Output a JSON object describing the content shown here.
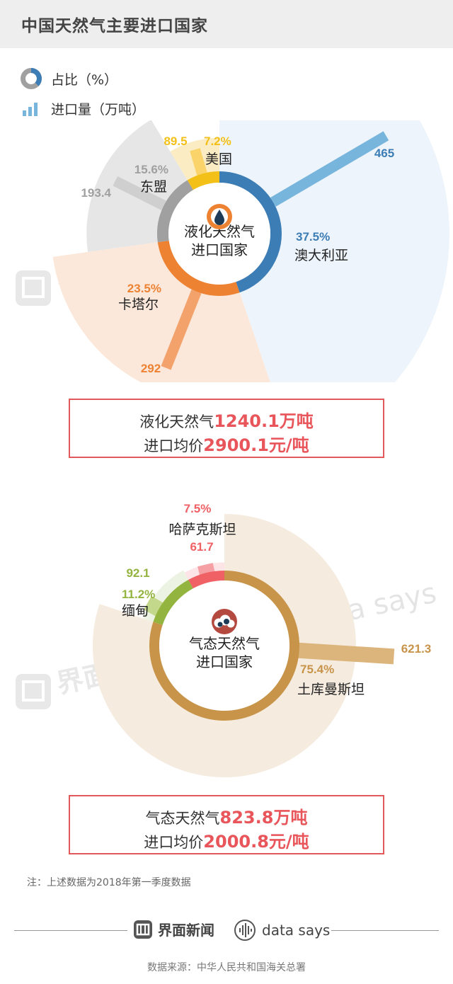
{
  "page": {
    "title": "中国天然气主要进口国家"
  },
  "legend": {
    "share_label": "占比（%）",
    "volume_label": "进口量（万吨）"
  },
  "watermarks": {
    "brand": "界面新",
    "brand2": "界面新",
    "ds": "data says",
    "ds2": "data says"
  },
  "chart_data": [
    {
      "type": "pie",
      "center_label": [
        "液化天然气",
        "进口国家"
      ],
      "value_unit": "万吨",
      "colors": [
        "#3d7db5",
        "#ed8233",
        "#a0a0a0",
        "#f3c018"
      ],
      "light_colors": [
        "#eef4fb",
        "#fbe8da",
        "#e6e6e6",
        "#fbecc4"
      ],
      "bar_colors": [
        "#78b5dd",
        "#f3a26c",
        "#cfcfcf",
        "#fad46b"
      ],
      "categories": [
        "澳大利亚",
        "卡塔尔",
        "东盟",
        "美国"
      ],
      "share_labels": [
        "37.5%",
        "23.5%",
        "15.6%",
        "7.2%"
      ],
      "shares": [
        37.5,
        23.5,
        15.6,
        7.2
      ],
      "volumes": [
        465,
        292,
        193.4,
        89.5
      ],
      "volume_labels": [
        "465",
        "292",
        "193.4",
        "89.5"
      ]
    },
    {
      "type": "pie",
      "center_label": [
        "气态天然气",
        "进口国家"
      ],
      "value_unit": "万吨",
      "colors": [
        "#c8944a",
        "#93b43f",
        "#f06166"
      ],
      "light_colors": [
        "#f5ebdf",
        "#edf3e2",
        "#fde4e6"
      ],
      "bar_colors": [
        "#dcb57d",
        "#c4d88c",
        "#f5a0a4"
      ],
      "categories": [
        "土库曼斯坦",
        "缅甸",
        "哈萨克斯坦"
      ],
      "share_labels": [
        "75.4%",
        "11.2%",
        "7.5%"
      ],
      "shares": [
        75.4,
        11.2,
        7.5
      ],
      "volumes": [
        621.3,
        92.1,
        61.7
      ],
      "volume_labels": [
        "621.3",
        "92.1",
        "61.7"
      ]
    }
  ],
  "summary": [
    {
      "prefix": "液化天然气",
      "amount": "1240.1万吨",
      "price_prefix": "进口均价",
      "price": "2900.1元/吨"
    },
    {
      "prefix": "气态天然气",
      "amount": "823.8万吨",
      "price_prefix": "进口均价",
      "price": "2000.8元/吨"
    }
  ],
  "note": "注：上述数据为2018年第一季度数据",
  "footer": {
    "brand": "界面新闻",
    "partner": "data says",
    "source": "数据来源：中华人民共和国海关总署"
  }
}
